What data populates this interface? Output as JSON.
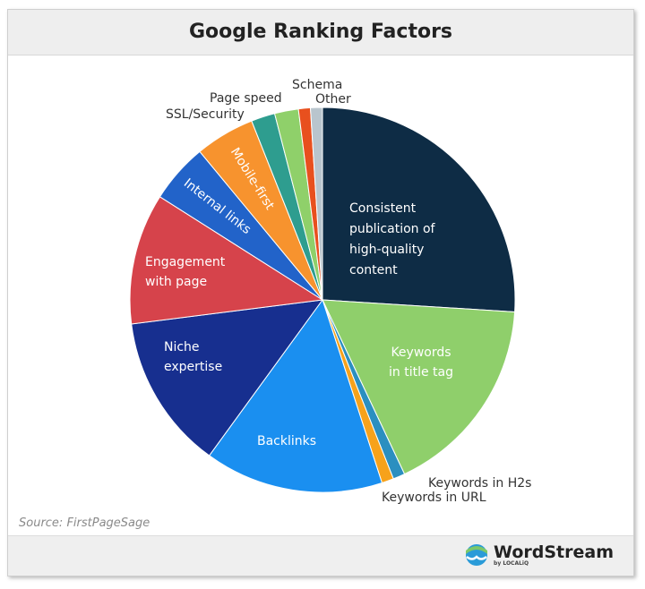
{
  "title": "Google Ranking Factors",
  "source": "Source: FirstPageSage",
  "logo": {
    "name": "WordStream",
    "byline": "by LOCALiQ"
  },
  "chart_data": {
    "type": "pie",
    "title": "Google Ranking Factors",
    "slices": [
      {
        "label": "Consistent publication of high-quality content",
        "label_lines": [
          "Consistent",
          "publication of",
          "high-quality",
          "content"
        ],
        "value": 26,
        "color": "#0e2c45"
      },
      {
        "label": "Keywords in title tag",
        "label_lines": [
          "Keywords",
          "in title tag"
        ],
        "value": 17,
        "color": "#8fcf6b"
      },
      {
        "label": "Keywords in H2s",
        "label_lines": [
          "Keywords in H2s"
        ],
        "value": 1,
        "color": "#2b8fc0"
      },
      {
        "label": "Keywords in URL",
        "label_lines": [
          "Keywords in URL"
        ],
        "value": 1,
        "color": "#f7a21b"
      },
      {
        "label": "Backlinks",
        "label_lines": [
          "Backlinks"
        ],
        "value": 15,
        "color": "#1a8ff0"
      },
      {
        "label": "Niche expertise",
        "label_lines": [
          "Niche",
          "expertise"
        ],
        "value": 13,
        "color": "#172f8f"
      },
      {
        "label": "Engagement with page",
        "label_lines": [
          "Engagement",
          "with page"
        ],
        "value": 11,
        "color": "#d6434b"
      },
      {
        "label": "Internal links",
        "label_lines": [
          "Internal links"
        ],
        "value": 5,
        "color": "#2263c9"
      },
      {
        "label": "Mobile-first",
        "label_lines": [
          "Mobile-first"
        ],
        "value": 5,
        "color": "#f7932e"
      },
      {
        "label": "SSL/Security",
        "label_lines": [
          "SSL/Security"
        ],
        "value": 2,
        "color": "#2e9d8f"
      },
      {
        "label": "Page speed",
        "label_lines": [
          "Page speed"
        ],
        "value": 2,
        "color": "#8fd06a"
      },
      {
        "label": "Schema",
        "label_lines": [
          "Schema"
        ],
        "value": 1,
        "color": "#e8501e"
      },
      {
        "label": "Other",
        "label_lines": [
          "Other"
        ],
        "value": 1,
        "color": "#b9c5cd"
      }
    ]
  }
}
